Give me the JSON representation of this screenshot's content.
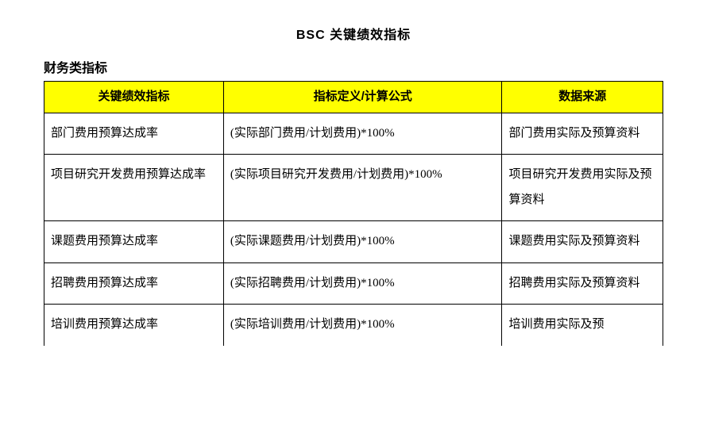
{
  "page": {
    "title": "BSC 关键绩效指标",
    "section_title": "财务类指标"
  },
  "table": {
    "header_bg": "#ffff00",
    "border_color": "#000000",
    "columns": [
      "关键绩效指标",
      "指标定义/计算公式",
      "数据来源"
    ],
    "rows": [
      [
        "部门费用预算达成率",
        "(实际部门费用/计划费用)*100%",
        "部门费用实际及预算资料"
      ],
      [
        "项目研究开发费用预算达成率",
        "(实际项目研究开发费用/计划费用)*100%",
        "项目研究开发费用实际及预算资料"
      ],
      [
        "课题费用预算达成率",
        "(实际课题费用/计划费用)*100%",
        "课题费用实际及预算资料"
      ],
      [
        "招聘费用预算达成率",
        "(实际招聘费用/计划费用)*100%",
        "招聘费用实际及预算资料"
      ],
      [
        "培训费用预算达成率",
        "(实际培训费用/计划费用)*100%",
        "培训费用实际及预"
      ]
    ]
  }
}
